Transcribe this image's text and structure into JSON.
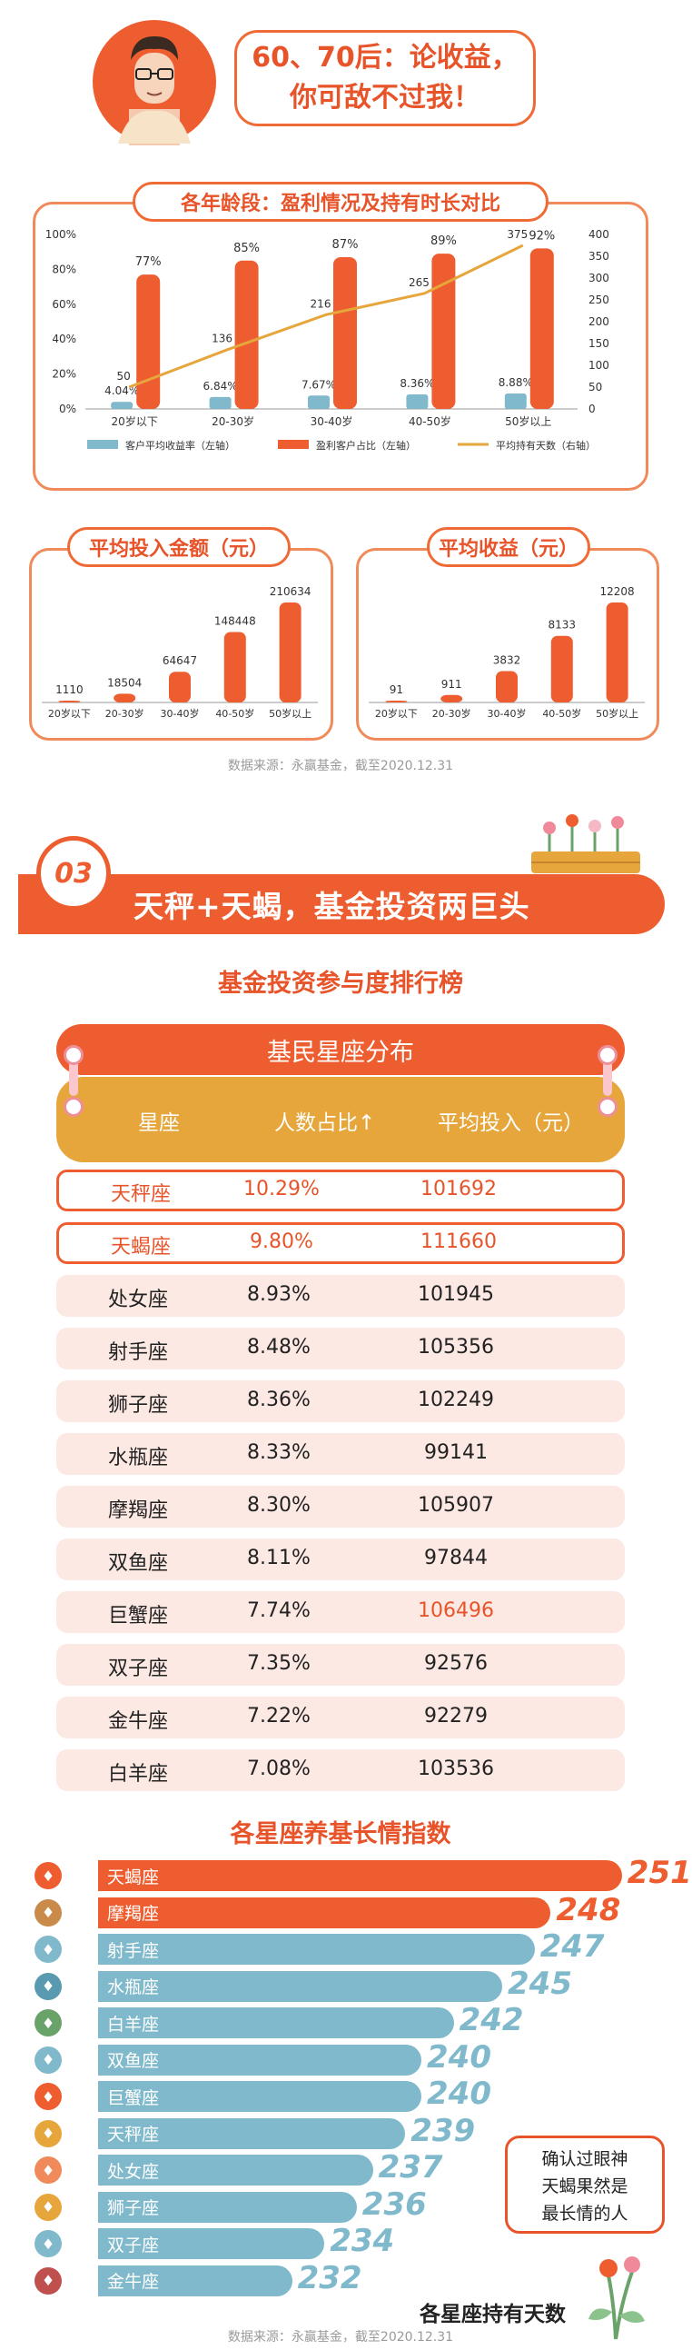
{
  "speech_bubble": {
    "line1": "60、70后：论收益，",
    "line2": "你可敌不过我！"
  },
  "chart_data": [
    {
      "type": "bar",
      "title": "各年龄段：盈利情况及持有时长对比",
      "categories": [
        "20岁以下",
        "20-30岁",
        "30-40岁",
        "40-50岁",
        "50岁以上"
      ],
      "series": [
        {
          "name": "客户平均收益率（左轴）",
          "kind": "bar",
          "axis": "left",
          "color": "#7fb9cb",
          "values": [
            4.04,
            6.84,
            7.67,
            8.36,
            8.88
          ],
          "labels": [
            "4.04%",
            "6.84%",
            "7.67%",
            "8.36%",
            "8.88%"
          ]
        },
        {
          "name": "盈利客户占比（左轴）",
          "kind": "bar",
          "axis": "left",
          "color": "#ee5d2f",
          "values": [
            77,
            85,
            87,
            89,
            92
          ],
          "labels": [
            "77%",
            "85%",
            "87%",
            "89%",
            "92%"
          ]
        },
        {
          "name": "平均持有天数（右轴）",
          "kind": "line",
          "axis": "right",
          "color": "#e6a63b",
          "values": [
            50,
            136,
            216,
            265,
            375
          ],
          "labels": [
            "50",
            "136",
            "216",
            "265",
            "375"
          ]
        }
      ],
      "y_left": {
        "ticks": [
          "0%",
          "20%",
          "40%",
          "60%",
          "80%",
          "100%"
        ],
        "ylim": [
          0,
          100
        ]
      },
      "y_right": {
        "ticks": [
          "0",
          "50",
          "100",
          "150",
          "200",
          "250",
          "300",
          "350",
          "400"
        ],
        "ylim": [
          0,
          400
        ]
      },
      "legend": "bottom"
    },
    {
      "type": "bar",
      "title": "平均投入金额（元）",
      "categories": [
        "20岁以下",
        "20-30岁",
        "30-40岁",
        "40-50岁",
        "50岁以上"
      ],
      "values": [
        1110,
        18504,
        64647,
        148448,
        210634
      ],
      "labels": [
        "1110",
        "18504",
        "64647",
        "148448",
        "210634"
      ],
      "color": "#ee5d2f"
    },
    {
      "type": "bar",
      "title": "平均收益（元）",
      "categories": [
        "20岁以下",
        "20-30岁",
        "30-40岁",
        "40-50岁",
        "50岁以上"
      ],
      "values": [
        91,
        911,
        3832,
        8133,
        12208
      ],
      "labels": [
        "91",
        "911",
        "3832",
        "8133",
        "12208"
      ],
      "color": "#ee5d2f"
    },
    {
      "type": "table",
      "title": "基民星座分布",
      "columns": [
        "星座",
        "人数占比↑",
        "平均投入（元）"
      ],
      "rows": [
        {
          "sign": "天秤座",
          "share": "10.29%",
          "avg": "101692",
          "highlight": true,
          "avg_orange": false
        },
        {
          "sign": "天蝎座",
          "share": "9.80%",
          "avg": "111660",
          "highlight": true,
          "avg_orange": false
        },
        {
          "sign": "处女座",
          "share": "8.93%",
          "avg": "101945",
          "highlight": false,
          "avg_orange": false
        },
        {
          "sign": "射手座",
          "share": "8.48%",
          "avg": "105356",
          "highlight": false,
          "avg_orange": false
        },
        {
          "sign": "狮子座",
          "share": "8.36%",
          "avg": "102249",
          "highlight": false,
          "avg_orange": false
        },
        {
          "sign": "水瓶座",
          "share": "8.33%",
          "avg": "99141",
          "highlight": false,
          "avg_orange": false
        },
        {
          "sign": "摩羯座",
          "share": "8.30%",
          "avg": "105907",
          "highlight": false,
          "avg_orange": false
        },
        {
          "sign": "双鱼座",
          "share": "8.11%",
          "avg": "97844",
          "highlight": false,
          "avg_orange": false
        },
        {
          "sign": "巨蟹座",
          "share": "7.74%",
          "avg": "106496",
          "highlight": false,
          "avg_orange": true
        },
        {
          "sign": "双子座",
          "share": "7.35%",
          "avg": "92576",
          "highlight": false,
          "avg_orange": false
        },
        {
          "sign": "金牛座",
          "share": "7.22%",
          "avg": "92279",
          "highlight": false,
          "avg_orange": false
        },
        {
          "sign": "白羊座",
          "share": "7.08%",
          "avg": "103536",
          "highlight": false,
          "avg_orange": false
        }
      ]
    },
    {
      "type": "bar",
      "title": "各星座养基长情指数",
      "orientation": "horizontal",
      "categories": [
        "天蝎座",
        "摩羯座",
        "射手座",
        "水瓶座",
        "白羊座",
        "双鱼座",
        "巨蟹座",
        "天秤座",
        "处女座",
        "狮子座",
        "双子座",
        "金牛座"
      ],
      "values": [
        251,
        248,
        247,
        245,
        242,
        240,
        240,
        239,
        237,
        236,
        234,
        232
      ],
      "colors": [
        "#ee5d2f",
        "#ee5d2f",
        "#7fb9cb",
        "#7fb9cb",
        "#7fb9cb",
        "#7fb9cb",
        "#7fb9cb",
        "#7fb9cb",
        "#7fb9cb",
        "#7fb9cb",
        "#7fb9cb",
        "#7fb9cb"
      ],
      "xlabel": "各星座持有天数"
    }
  ],
  "source_note": "数据来源：永赢基金，截至2020.12.31",
  "section": {
    "number": "03",
    "title": "天秤+天蝎，基金投资两巨头"
  },
  "ranking_heading": "基金投资参与度排行榜",
  "note_box": {
    "line1": "确认过眼神",
    "line2": "天蝎果然是",
    "line3": "最长情的人"
  }
}
